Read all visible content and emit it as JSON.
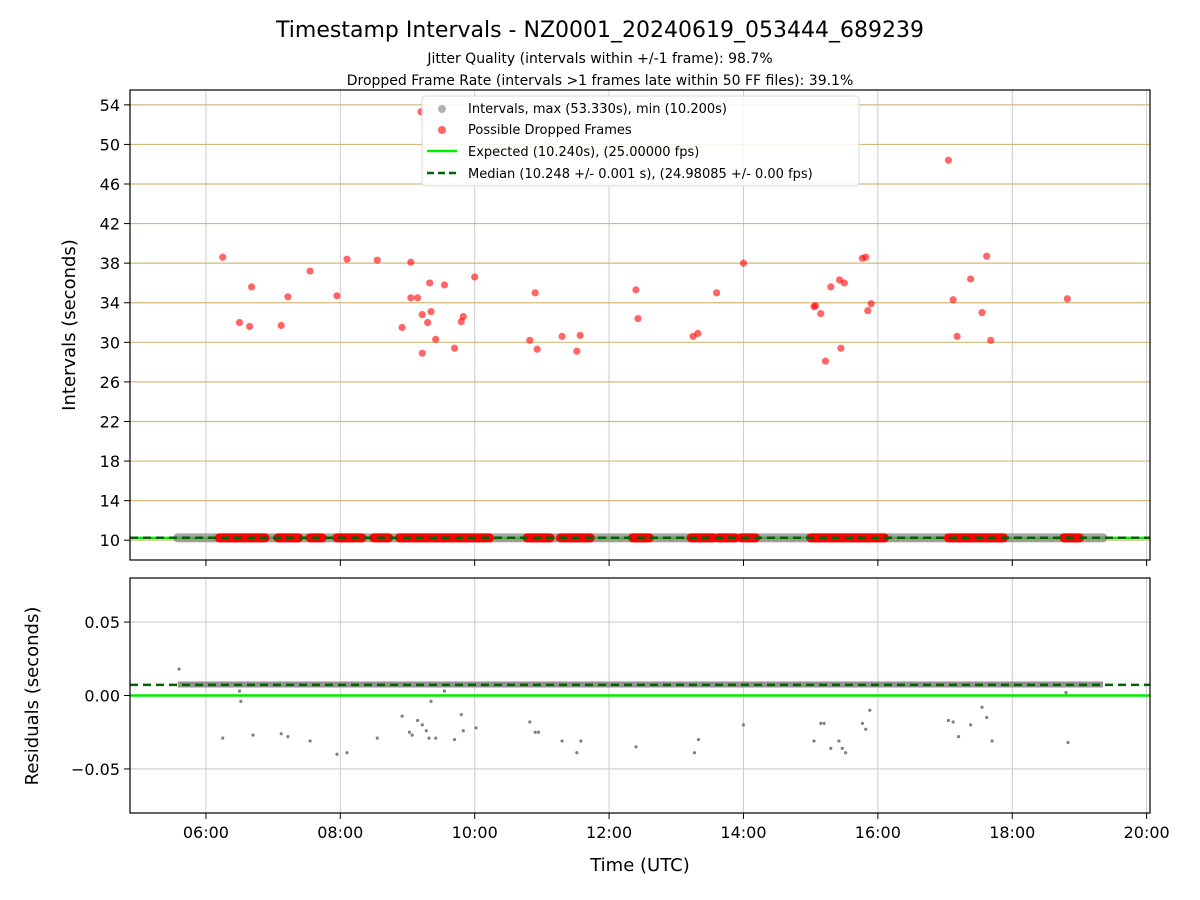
{
  "chart_data": [
    {
      "type": "scatter",
      "title": "Timestamp Intervals - NZ0001_20240619_053444_689239",
      "subtitle_lines": [
        "Jitter Quality (intervals within +/-1 frame): 98.7%",
        "Dropped Frame Rate (intervals >1 frames late within 50 FF files): 39.1%"
      ],
      "xlabel": "",
      "ylabel": "Intervals (seconds)",
      "x_unit": "hours UTC",
      "xlim": [
        4.87,
        20.05
      ],
      "ylim": [
        8.0,
        55.5
      ],
      "yticks": [
        10,
        14,
        18,
        22,
        26,
        30,
        34,
        38,
        42,
        46,
        50,
        54
      ],
      "ytick_labels": [
        "10",
        "14",
        "18",
        "22",
        "26",
        "30",
        "34",
        "38",
        "42",
        "46",
        "50",
        "54"
      ],
      "xticks": [
        6,
        8,
        10,
        12,
        14,
        16,
        18,
        20
      ],
      "xtick_labels": [
        "06:00",
        "08:00",
        "10:00",
        "12:00",
        "14:00",
        "16:00",
        "18:00",
        "20:00"
      ],
      "grid": {
        "x": true,
        "y": true,
        "y_color": "#d4b97a",
        "x_color": "#cccccc"
      },
      "legend": {
        "placement": "top-center",
        "entries": [
          "Intervals, max (53.330s), min (10.200s)",
          "Possible Dropped Frames",
          "Expected (10.240s), (25.00000 fps)",
          "Median (10.248 +/- 0.001 s), (24.98085 +/- 0.00 fps)"
        ]
      },
      "series": [
        {
          "name": "Intervals, max (53.330s), min (10.200s)",
          "color": "#808080",
          "band": {
            "x_start": 5.58,
            "x_end": 19.35,
            "y": 10.24
          }
        },
        {
          "name": "Possible Dropped Frames",
          "color": "#ff0000",
          "points": [
            [
              6.25,
              38.6
            ],
            [
              6.5,
              32.0
            ],
            [
              6.68,
              35.6
            ],
            [
              6.65,
              31.6
            ],
            [
              7.12,
              31.7
            ],
            [
              7.22,
              34.6
            ],
            [
              7.55,
              37.2
            ],
            [
              7.95,
              34.7
            ],
            [
              8.1,
              38.4
            ],
            [
              8.55,
              38.3
            ],
            [
              8.92,
              31.5
            ],
            [
              9.05,
              38.1
            ],
            [
              9.05,
              34.5
            ],
            [
              9.15,
              34.5
            ],
            [
              9.22,
              32.8
            ],
            [
              9.22,
              28.9
            ],
            [
              9.3,
              32.0
            ],
            [
              9.33,
              36.0
            ],
            [
              9.35,
              33.1
            ],
            [
              9.42,
              30.3
            ],
            [
              9.55,
              35.8
            ],
            [
              9.7,
              29.4
            ],
            [
              9.8,
              32.1
            ],
            [
              9.83,
              32.6
            ],
            [
              10.0,
              36.6
            ],
            [
              9.2,
              53.3
            ],
            [
              10.82,
              30.2
            ],
            [
              10.9,
              35.0
            ],
            [
              10.93,
              29.3
            ],
            [
              11.3,
              30.6
            ],
            [
              11.52,
              29.1
            ],
            [
              11.57,
              30.7
            ],
            [
              12.4,
              35.3
            ],
            [
              12.43,
              32.4
            ],
            [
              13.25,
              30.6
            ],
            [
              13.32,
              30.9
            ],
            [
              13.6,
              35.0
            ],
            [
              14.0,
              38.0
            ],
            [
              15.05,
              33.6
            ],
            [
              15.07,
              33.7
            ],
            [
              15.15,
              32.9
            ],
            [
              15.22,
              28.1
            ],
            [
              15.3,
              35.6
            ],
            [
              15.43,
              36.3
            ],
            [
              15.45,
              29.4
            ],
            [
              15.5,
              36.0
            ],
            [
              15.77,
              38.5
            ],
            [
              15.82,
              38.6
            ],
            [
              15.85,
              33.2
            ],
            [
              15.9,
              33.9
            ],
            [
              17.05,
              48.4
            ],
            [
              17.12,
              34.3
            ],
            [
              17.18,
              30.6
            ],
            [
              17.38,
              36.4
            ],
            [
              17.55,
              33.0
            ],
            [
              17.62,
              38.7
            ],
            [
              17.68,
              30.2
            ],
            [
              18.82,
              34.4
            ]
          ],
          "baseline_runs": [
            [
              6.2,
              6.88
            ],
            [
              7.07,
              7.38
            ],
            [
              7.55,
              7.73
            ],
            [
              7.95,
              8.32
            ],
            [
              8.5,
              8.72
            ],
            [
              8.88,
              10.22
            ],
            [
              10.78,
              11.12
            ],
            [
              11.28,
              11.72
            ],
            [
              12.35,
              12.6
            ],
            [
              13.22,
              13.55
            ],
            [
              13.62,
              13.88
            ],
            [
              13.97,
              14.18
            ],
            [
              15.0,
              15.8
            ],
            [
              15.8,
              16.1
            ],
            [
              17.05,
              17.87
            ],
            [
              18.77,
              19.0
            ]
          ]
        },
        {
          "name": "Expected (10.240s), (25.00000 fps)",
          "color": "#00ee00",
          "y": 10.24
        },
        {
          "name": "Median (10.248 +/- 0.001 s), (24.98085 +/- 0.00 fps)",
          "color": "#006400",
          "y": 10.248
        }
      ]
    },
    {
      "type": "scatter",
      "title": "",
      "xlabel": "Time (UTC)",
      "ylabel": "Residuals (seconds)",
      "x_unit": "hours UTC",
      "xlim": [
        4.87,
        20.05
      ],
      "ylim": [
        -0.08,
        0.08
      ],
      "yticks": [
        -0.05,
        0.0,
        0.05
      ],
      "ytick_labels": [
        "−0.05",
        "0.00",
        "0.05"
      ],
      "xticks": [
        6,
        8,
        10,
        12,
        14,
        16,
        18,
        20
      ],
      "xtick_labels": [
        "06:00",
        "08:00",
        "10:00",
        "12:00",
        "14:00",
        "16:00",
        "18:00",
        "20:00"
      ],
      "grid": {
        "x": true,
        "y": true,
        "y_color": "#cccccc",
        "x_color": "#cccccc"
      },
      "series": [
        {
          "name": "residuals",
          "color": "#808080",
          "band": {
            "x_start": 5.58,
            "x_end": 19.35,
            "y": 0.0075
          },
          "points": [
            [
              5.6,
              0.018
            ],
            [
              6.25,
              -0.029
            ],
            [
              6.5,
              0.003
            ],
            [
              6.52,
              -0.004
            ],
            [
              6.7,
              -0.027
            ],
            [
              7.12,
              -0.026
            ],
            [
              7.22,
              -0.028
            ],
            [
              7.55,
              -0.031
            ],
            [
              7.95,
              -0.04
            ],
            [
              8.1,
              -0.039
            ],
            [
              8.55,
              -0.029
            ],
            [
              8.92,
              -0.014
            ],
            [
              9.03,
              -0.025
            ],
            [
              9.07,
              -0.027
            ],
            [
              9.15,
              -0.017
            ],
            [
              9.22,
              -0.02
            ],
            [
              9.28,
              -0.024
            ],
            [
              9.32,
              -0.029
            ],
            [
              9.35,
              -0.004
            ],
            [
              9.42,
              -0.029
            ],
            [
              9.55,
              0.003
            ],
            [
              9.7,
              -0.03
            ],
            [
              9.8,
              -0.013
            ],
            [
              9.83,
              -0.024
            ],
            [
              10.02,
              -0.022
            ],
            [
              10.82,
              -0.018
            ],
            [
              10.9,
              -0.025
            ],
            [
              10.95,
              -0.025
            ],
            [
              11.3,
              -0.031
            ],
            [
              11.52,
              -0.039
            ],
            [
              11.58,
              -0.031
            ],
            [
              12.4,
              -0.035
            ],
            [
              13.27,
              -0.039
            ],
            [
              13.33,
              -0.03
            ],
            [
              14.0,
              -0.02
            ],
            [
              15.05,
              -0.031
            ],
            [
              15.15,
              -0.019
            ],
            [
              15.2,
              -0.019
            ],
            [
              15.3,
              -0.036
            ],
            [
              15.42,
              -0.031
            ],
            [
              15.47,
              -0.036
            ],
            [
              15.52,
              -0.039
            ],
            [
              15.77,
              -0.019
            ],
            [
              15.82,
              -0.023
            ],
            [
              15.88,
              -0.01
            ],
            [
              17.05,
              -0.017
            ],
            [
              17.12,
              -0.018
            ],
            [
              17.2,
              -0.028
            ],
            [
              17.38,
              -0.02
            ],
            [
              17.55,
              -0.008
            ],
            [
              17.62,
              -0.015
            ],
            [
              17.7,
              -0.031
            ],
            [
              18.8,
              0.002
            ],
            [
              18.83,
              -0.032
            ]
          ]
        },
        {
          "name": "expected",
          "color": "#00ee00",
          "y": 0.0
        },
        {
          "name": "median",
          "color": "#006400",
          "y": 0.0072
        }
      ]
    }
  ]
}
